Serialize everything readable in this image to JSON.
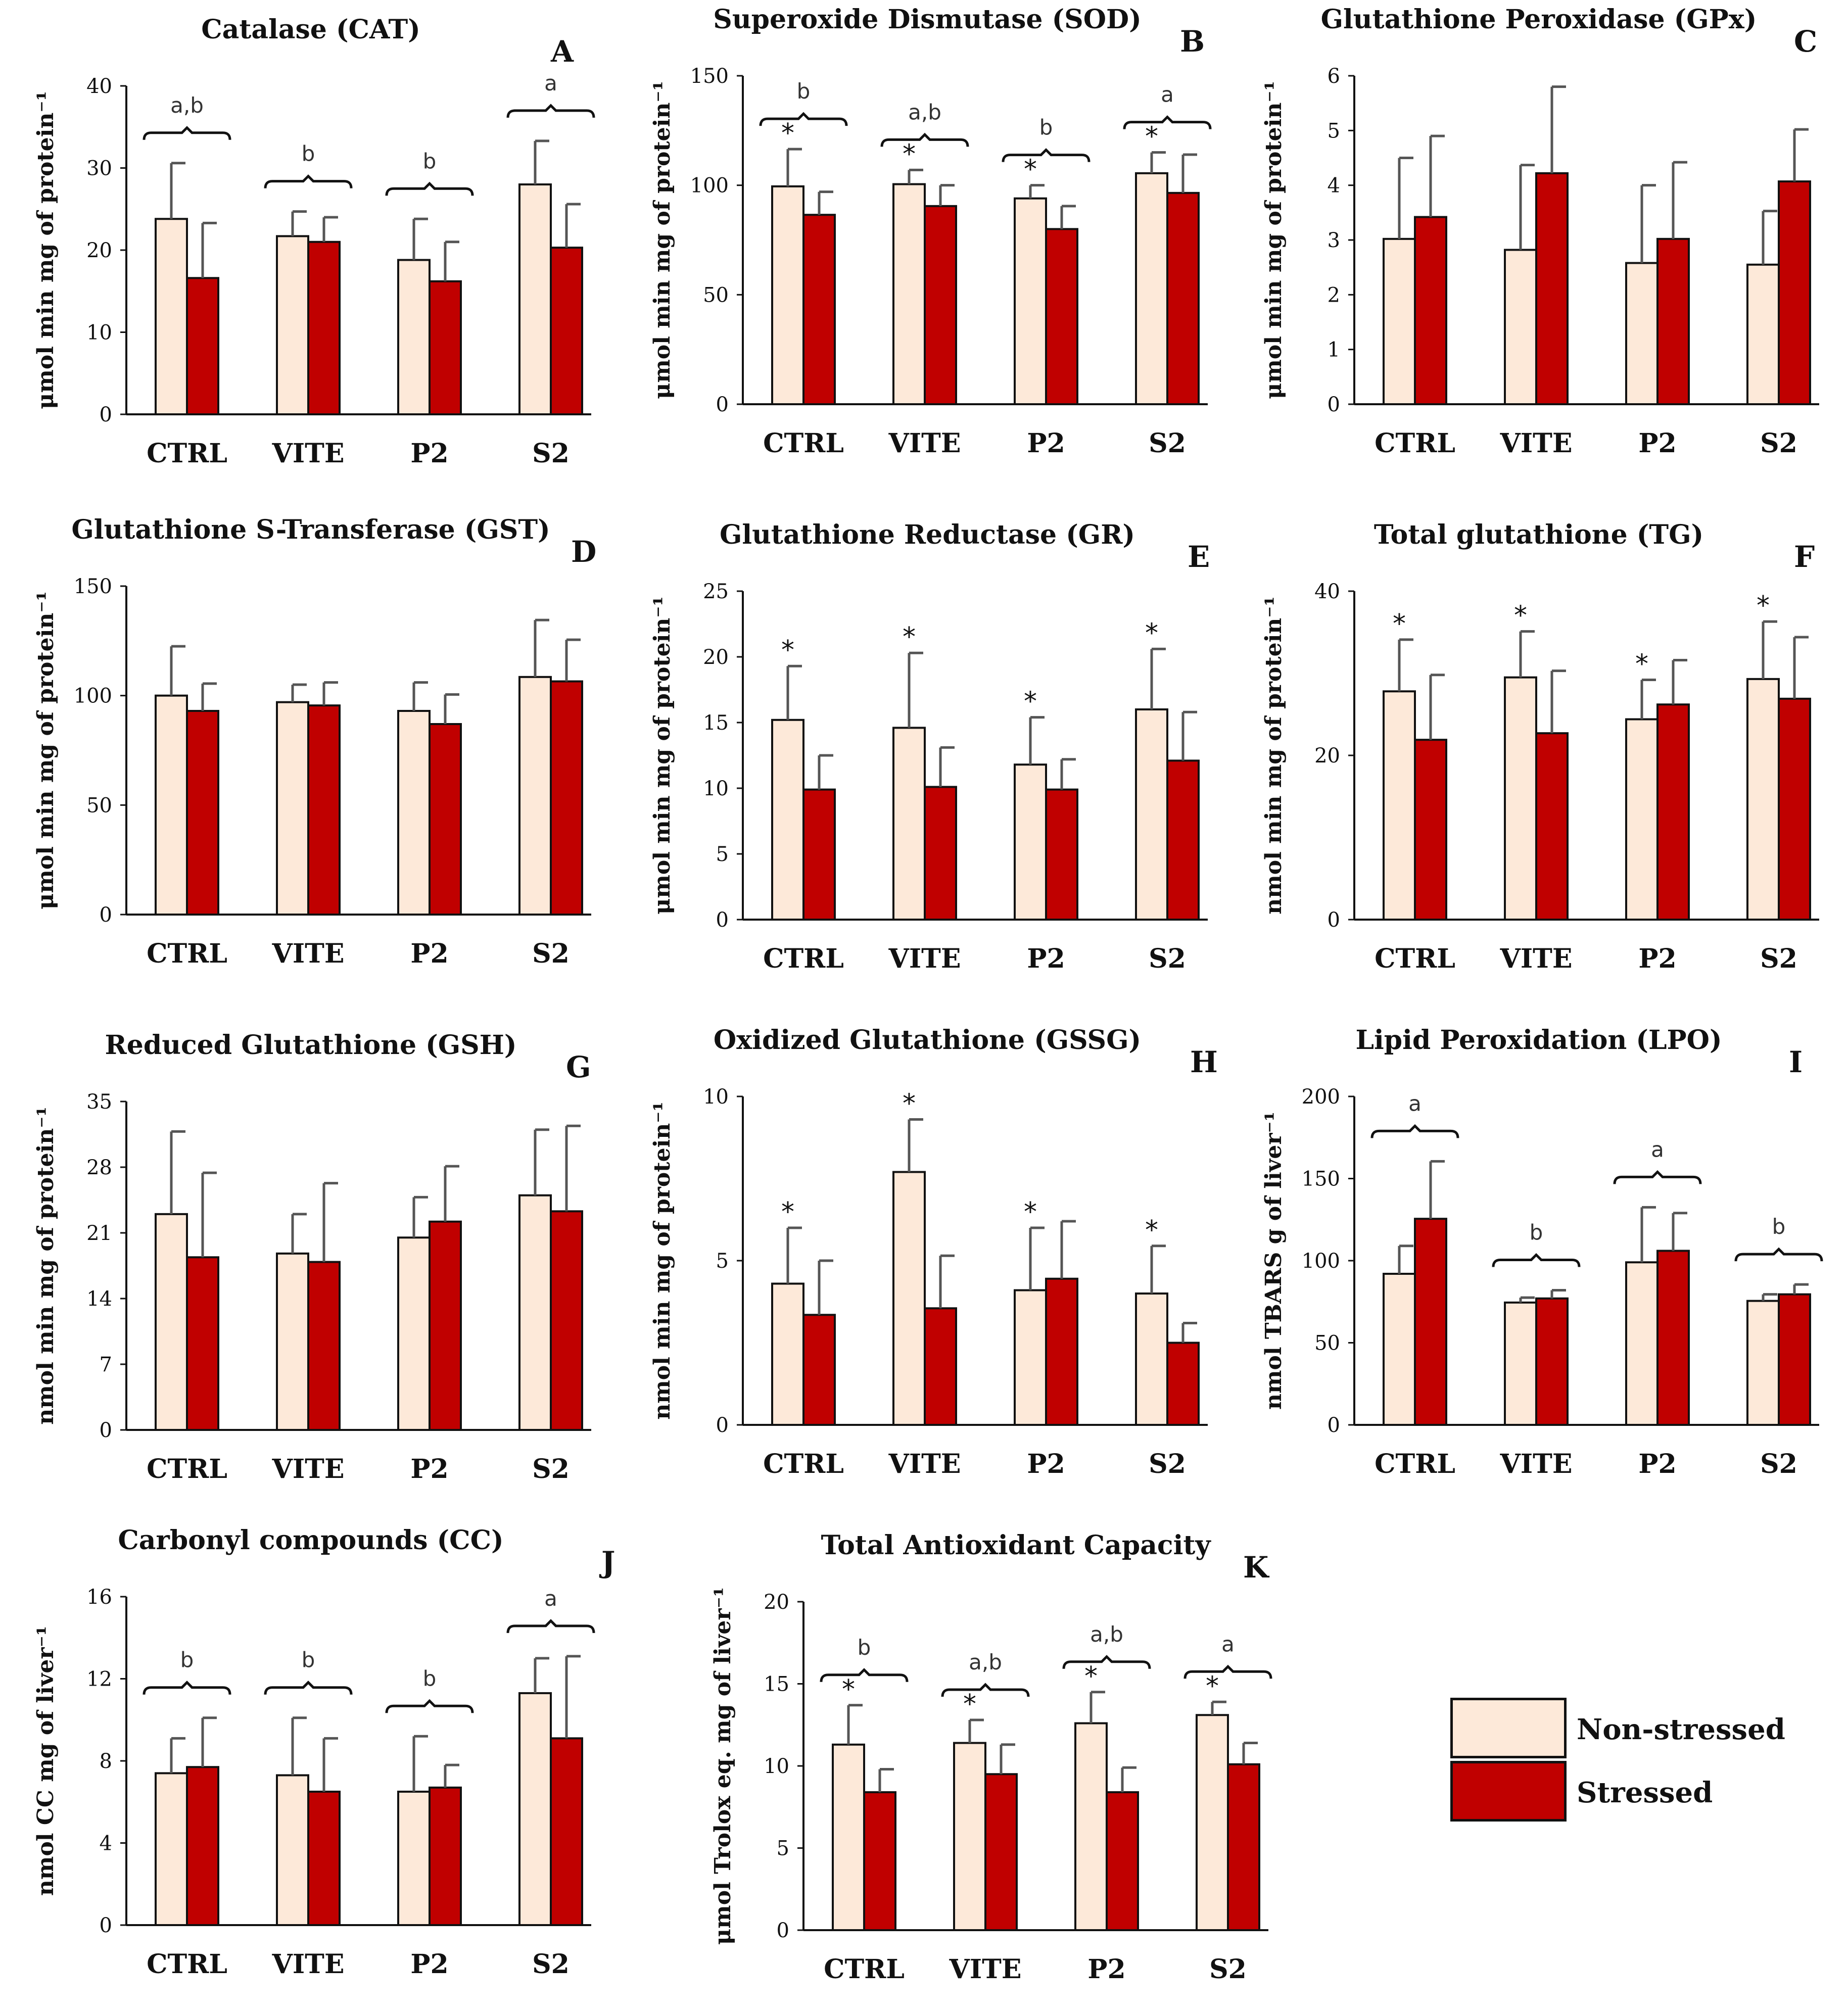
{
  "legend": {
    "nonstressed_label": "Non-stressed",
    "stressed_label": "Stressed",
    "nonstressed_color": "#fde9d9",
    "stressed_color": "#c00000"
  },
  "chart_data": [
    {
      "panel": "A",
      "type": "bar",
      "title": "Catalase (CAT)",
      "ylabel": "μmol min mg of protein⁻¹",
      "ylim": [
        0,
        40
      ],
      "yticks": [
        "0",
        "10",
        "20",
        "30",
        "40"
      ],
      "categories": [
        "CTRL",
        "VITE",
        "P2",
        "S2"
      ],
      "series": [
        {
          "name": "Non-stressed",
          "values": [
            23.8,
            21.7,
            18.8,
            28.0
          ],
          "errors": [
            6.8,
            3.0,
            5.0,
            5.3
          ]
        },
        {
          "name": "Stressed",
          "values": [
            16.6,
            21.0,
            16.2,
            20.3
          ],
          "errors": [
            6.7,
            3.0,
            4.8,
            5.3
          ]
        }
      ],
      "brace_labels": [
        "a,b",
        "b",
        "b",
        "a"
      ],
      "star_labels": [
        "",
        "",
        "",
        ""
      ]
    },
    {
      "panel": "B",
      "type": "bar",
      "title": "Superoxide Dismutase (SOD)",
      "ylabel": "μmol min mg of protein⁻¹",
      "ylim": [
        0,
        150
      ],
      "yticks": [
        "0",
        "50",
        "100",
        "150"
      ],
      "categories": [
        "CTRL",
        "VITE",
        "P2",
        "S2"
      ],
      "series": [
        {
          "name": "Non-stressed",
          "values": [
            99.5,
            100.5,
            94.0,
            105.5
          ],
          "errors": [
            17.0,
            6.5,
            6.0,
            9.5
          ]
        },
        {
          "name": "Stressed",
          "values": [
            86.5,
            90.5,
            80.0,
            96.5
          ],
          "errors": [
            10.5,
            9.5,
            10.5,
            17.5
          ]
        }
      ],
      "brace_labels": [
        "b",
        "a,b",
        "b",
        "a"
      ],
      "star_labels": [
        "*",
        "*",
        "*",
        "*"
      ]
    },
    {
      "panel": "C",
      "type": "bar",
      "title": "Glutathione Peroxidase (GPx)",
      "ylabel": "μmol min mg of protein⁻¹",
      "ylim": [
        0,
        6
      ],
      "yticks": [
        "0",
        "1",
        "2",
        "3",
        "4",
        "5",
        "6"
      ],
      "categories": [
        "CTRL",
        "VITE",
        "P2",
        "S2"
      ],
      "series": [
        {
          "name": "Non-stressed",
          "values": [
            3.02,
            2.82,
            2.58,
            2.55
          ],
          "errors": [
            1.48,
            1.55,
            1.42,
            0.98
          ]
        },
        {
          "name": "Stressed",
          "values": [
            3.42,
            4.22,
            3.02,
            4.07
          ],
          "errors": [
            1.48,
            1.58,
            1.4,
            0.95
          ]
        }
      ],
      "brace_labels": [
        "",
        "",
        "",
        ""
      ],
      "star_labels": [
        "",
        "",
        "",
        ""
      ]
    },
    {
      "panel": "D",
      "type": "bar",
      "title": "Glutathione S-Transferase (GST)",
      "ylabel": "μmol min mg of protein⁻¹",
      "ylim": [
        0,
        150
      ],
      "yticks": [
        "0",
        "50",
        "100",
        "150"
      ],
      "categories": [
        "CTRL",
        "VITE",
        "P2",
        "S2"
      ],
      "series": [
        {
          "name": "Non-stressed",
          "values": [
            100.0,
            97.0,
            93.0,
            108.5
          ],
          "errors": [
            22.5,
            8.0,
            13.0,
            26.0
          ]
        },
        {
          "name": "Stressed",
          "values": [
            93.0,
            95.5,
            87.0,
            106.5
          ],
          "errors": [
            12.5,
            10.5,
            13.5,
            19.0
          ]
        }
      ],
      "brace_labels": [
        "",
        "",
        "",
        ""
      ],
      "star_labels": [
        "",
        "",
        "",
        ""
      ]
    },
    {
      "panel": "E",
      "type": "bar",
      "title": "Glutathione Reductase (GR)",
      "ylabel": "μmol min mg of protein⁻¹",
      "ylim": [
        0,
        25
      ],
      "yticks": [
        "0",
        "5",
        "10",
        "15",
        "20",
        "25"
      ],
      "categories": [
        "CTRL",
        "VITE",
        "P2",
        "S2"
      ],
      "series": [
        {
          "name": "Non-stressed",
          "values": [
            15.2,
            14.6,
            11.8,
            16.0
          ],
          "errors": [
            4.1,
            5.7,
            3.6,
            4.6
          ]
        },
        {
          "name": "Stressed",
          "values": [
            9.9,
            10.1,
            9.9,
            12.1
          ],
          "errors": [
            2.6,
            3.0,
            2.3,
            3.7
          ]
        }
      ],
      "brace_labels": [
        "",
        "",
        "",
        ""
      ],
      "star_labels": [
        "*",
        "*",
        "*",
        "*"
      ]
    },
    {
      "panel": "F",
      "type": "bar",
      "title": "Total glutathione (TG)",
      "ylabel": "nmol min mg of protein⁻¹",
      "ylim": [
        0,
        40
      ],
      "yticks": [
        "0",
        "20",
        "40"
      ],
      "categories": [
        "CTRL",
        "VITE",
        "P2",
        "S2"
      ],
      "series": [
        {
          "name": "Non-stressed",
          "values": [
            27.8,
            29.5,
            24.4,
            29.3
          ],
          "errors": [
            6.3,
            5.6,
            4.8,
            7.0
          ]
        },
        {
          "name": "Stressed",
          "values": [
            21.9,
            22.7,
            26.2,
            26.9
          ],
          "errors": [
            7.9,
            7.6,
            5.4,
            7.5
          ]
        }
      ],
      "brace_labels": [
        "",
        "",
        "",
        ""
      ],
      "star_labels": [
        "*",
        "*",
        "*",
        "*"
      ]
    },
    {
      "panel": "G",
      "type": "bar",
      "title": "Reduced Glutathione (GSH)",
      "ylabel": "nmol min mg of protein⁻¹",
      "ylim": [
        0,
        35
      ],
      "yticks": [
        "0",
        "7",
        "14",
        "21",
        "28",
        "35"
      ],
      "categories": [
        "CTRL",
        "VITE",
        "P2",
        "S2"
      ],
      "series": [
        {
          "name": "Non-stressed",
          "values": [
            23.0,
            18.8,
            20.5,
            25.0
          ],
          "errors": [
            8.8,
            4.2,
            4.3,
            7.0
          ]
        },
        {
          "name": "Stressed",
          "values": [
            18.4,
            17.9,
            22.2,
            23.3
          ],
          "errors": [
            9.0,
            8.4,
            5.9,
            9.1
          ]
        }
      ],
      "brace_labels": [
        "",
        "",
        "",
        ""
      ],
      "star_labels": [
        "",
        "",
        "",
        ""
      ]
    },
    {
      "panel": "H",
      "type": "bar",
      "title": "Oxidized Glutathione (GSSG)",
      "ylabel": "nmol min mg of protein⁻¹",
      "ylim": [
        0,
        10
      ],
      "yticks": [
        "0",
        "5",
        "10"
      ],
      "categories": [
        "CTRL",
        "VITE",
        "P2",
        "S2"
      ],
      "series": [
        {
          "name": "Non-stressed",
          "values": [
            4.3,
            7.7,
            4.1,
            4.0
          ],
          "errors": [
            1.7,
            1.6,
            1.9,
            1.45
          ]
        },
        {
          "name": "Stressed",
          "values": [
            3.35,
            3.55,
            4.45,
            2.5
          ],
          "errors": [
            1.65,
            1.6,
            1.75,
            0.6
          ]
        }
      ],
      "brace_labels": [
        "",
        "",
        "",
        ""
      ],
      "star_labels": [
        "*",
        "*",
        "*",
        "*"
      ]
    },
    {
      "panel": "I",
      "type": "bar",
      "title": "Lipid Peroxidation (LPO)",
      "ylabel": "nmol TBARS g of liver⁻¹",
      "ylim": [
        0,
        200
      ],
      "yticks": [
        "0",
        "50",
        "100",
        "150",
        "200"
      ],
      "categories": [
        "CTRL",
        "VITE",
        "P2",
        "S2"
      ],
      "series": [
        {
          "name": "Non-stressed",
          "values": [
            92.0,
            74.5,
            99.0,
            75.5
          ],
          "errors": [
            17.0,
            3.0,
            33.5,
            4.0
          ]
        },
        {
          "name": "Stressed",
          "values": [
            125.5,
            77.0,
            106.0,
            79.5
          ],
          "errors": [
            35.0,
            5.0,
            23.0,
            6.0
          ]
        }
      ],
      "brace_labels": [
        "a",
        "b",
        "a",
        "b"
      ],
      "star_labels": [
        "",
        "",
        "",
        ""
      ]
    },
    {
      "panel": "J",
      "type": "bar",
      "title": "Carbonyl compounds (CC)",
      "ylabel": "nmol CC mg of liver⁻¹",
      "ylim": [
        0,
        16
      ],
      "yticks": [
        "0",
        "4",
        "8",
        "12",
        "16"
      ],
      "categories": [
        "CTRL",
        "VITE",
        "P2",
        "S2"
      ],
      "series": [
        {
          "name": "Non-stressed",
          "values": [
            7.4,
            7.3,
            6.5,
            11.3
          ],
          "errors": [
            1.7,
            2.8,
            2.7,
            1.7
          ]
        },
        {
          "name": "Stressed",
          "values": [
            7.7,
            6.5,
            6.7,
            9.1
          ],
          "errors": [
            2.4,
            2.6,
            1.1,
            4.0
          ]
        }
      ],
      "brace_labels": [
        "b",
        "b",
        "b",
        "a"
      ],
      "star_labels": [
        "",
        "",
        "",
        ""
      ]
    },
    {
      "panel": "K",
      "type": "bar",
      "title": "Total Antioxidant Capacity",
      "ylabel": "μmol  Trolox eq.  mg of liver⁻¹",
      "ylim": [
        0,
        20
      ],
      "yticks": [
        "0",
        "5",
        "10",
        "15",
        "20"
      ],
      "categories": [
        "CTRL",
        "VITE",
        "P2",
        "S2"
      ],
      "series": [
        {
          "name": "Non-stressed",
          "values": [
            11.3,
            11.4,
            12.6,
            13.1
          ],
          "errors": [
            2.4,
            1.4,
            1.9,
            0.8
          ]
        },
        {
          "name": "Stressed",
          "values": [
            8.4,
            9.5,
            8.4,
            10.1
          ],
          "errors": [
            1.4,
            1.8,
            1.5,
            1.3
          ]
        }
      ],
      "brace_labels": [
        "b",
        "a,b",
        "a,b",
        "a"
      ],
      "star_labels": [
        "*",
        "*",
        "*",
        "*"
      ]
    }
  ]
}
